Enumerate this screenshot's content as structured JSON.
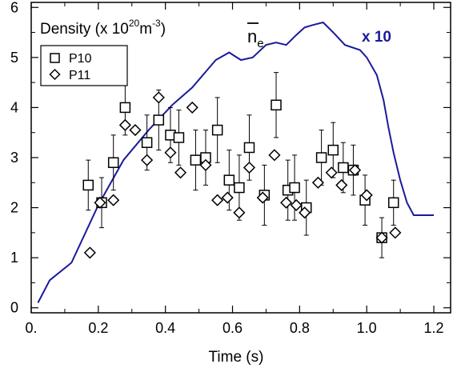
{
  "chart_data": {
    "type": "scatter",
    "title": "Density (x 10²⁰m⁻³)",
    "title_parts": {
      "base": "Density (x 10",
      "exp1": "20",
      "mid": "m",
      "exp2": "-3",
      "end": ")"
    },
    "xlabel": "Time (s)",
    "ylabel": "",
    "xlim": [
      0,
      1.25
    ],
    "ylim": [
      -0.1,
      6.1
    ],
    "x_ticks": [
      0,
      0.2,
      0.4,
      0.6,
      0.8,
      1.0,
      1.2
    ],
    "x_tick_labels": [
      "0.",
      "0.2",
      "0.4",
      "0.6",
      "0.8",
      "1.0",
      "1.2"
    ],
    "y_ticks": [
      0,
      1,
      2,
      3,
      4,
      5,
      6
    ],
    "y_tick_labels": [
      "0",
      "1",
      "2",
      "3",
      "4",
      "5",
      "6"
    ],
    "legend_position": "top-left",
    "series": [
      {
        "name": "P10",
        "marker": "square",
        "x": [
          0.17,
          0.21,
          0.245,
          0.28,
          0.345,
          0.38,
          0.415,
          0.44,
          0.49,
          0.52,
          0.555,
          0.59,
          0.62,
          0.65,
          0.695,
          0.73,
          0.765,
          0.785,
          0.82,
          0.865,
          0.9,
          0.93,
          0.96,
          0.995,
          1.045,
          1.08
        ],
        "y": [
          2.45,
          2.1,
          2.9,
          4.0,
          3.3,
          3.75,
          3.45,
          3.4,
          2.95,
          3.0,
          3.55,
          2.55,
          2.4,
          3.2,
          2.25,
          4.05,
          2.35,
          2.4,
          2.0,
          3.0,
          3.15,
          2.8,
          2.75,
          2.15,
          1.4,
          2.1
        ],
        "err": [
          0.5,
          0.5,
          0.55,
          0.55,
          0.55,
          0.6,
          0.55,
          0.55,
          0.6,
          0.55,
          0.65,
          0.6,
          0.65,
          0.65,
          0.6,
          0.65,
          0.6,
          0.65,
          0.55,
          0.55,
          0.55,
          0.5,
          0.5,
          0.5,
          0.4,
          0.45
        ]
      },
      {
        "name": "P11",
        "marker": "diamond",
        "x": [
          0.175,
          0.205,
          0.245,
          0.28,
          0.31,
          0.345,
          0.38,
          0.415,
          0.445,
          0.48,
          0.52,
          0.555,
          0.585,
          0.62,
          0.65,
          0.69,
          0.725,
          0.76,
          0.79,
          0.815,
          0.855,
          0.895,
          0.925,
          0.965,
          1.0,
          1.045,
          1.085
        ],
        "y": [
          1.1,
          2.1,
          2.15,
          3.65,
          3.55,
          2.95,
          4.2,
          3.1,
          2.7,
          4.0,
          2.85,
          2.15,
          2.2,
          1.9,
          2.8,
          2.2,
          3.05,
          2.1,
          2.05,
          1.9,
          2.5,
          2.7,
          2.45,
          2.75,
          2.25,
          1.4,
          1.5
        ]
      },
      {
        "name": "n_e",
        "label_base": "n",
        "label_sub": "e",
        "annotation": "x 10",
        "type": "line",
        "color": "#1a1a9c",
        "x": [
          0.02,
          0.055,
          0.12,
          0.2,
          0.275,
          0.35,
          0.42,
          0.48,
          0.55,
          0.59,
          0.625,
          0.66,
          0.7,
          0.73,
          0.76,
          0.79,
          0.815,
          0.84,
          0.87,
          0.9,
          0.935,
          0.98,
          1.0,
          1.03,
          1.05,
          1.065,
          1.08,
          1.1,
          1.12,
          1.14,
          1.2
        ],
        "y": [
          0.1,
          0.55,
          0.9,
          2.05,
          2.95,
          3.55,
          4.05,
          4.4,
          4.95,
          5.1,
          4.95,
          5.0,
          5.25,
          5.3,
          5.25,
          5.45,
          5.6,
          5.65,
          5.7,
          5.5,
          5.25,
          5.15,
          5.0,
          4.65,
          4.15,
          3.6,
          3.1,
          2.55,
          2.1,
          1.85,
          1.85
        ]
      }
    ]
  }
}
